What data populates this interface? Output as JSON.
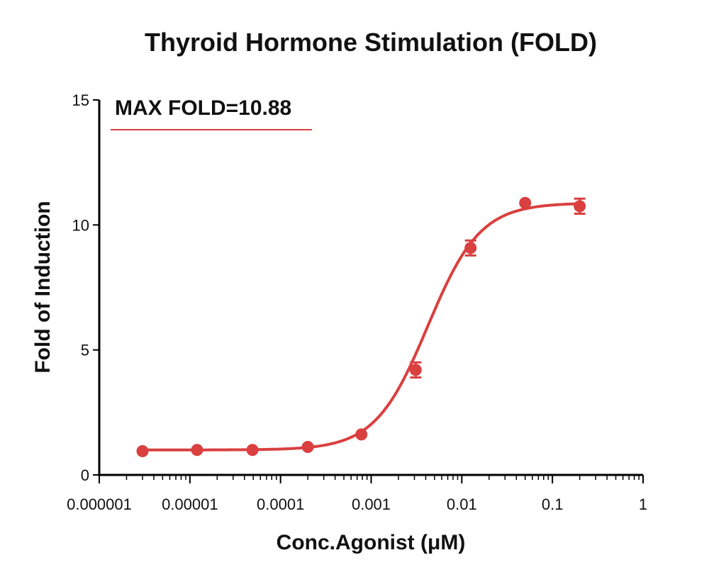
{
  "chart_data": {
    "type": "scatter",
    "title": "Thyroid Hormone Stimulation (FOLD)",
    "xlabel": "Conc.Agonist (μM)",
    "ylabel": "Fold of Induction",
    "x_scale": "log",
    "xlim": [
      1e-06,
      1
    ],
    "ylim": [
      0,
      15
    ],
    "x_ticks": [
      {
        "value": 1e-06,
        "label": "0.000001"
      },
      {
        "value": 1e-05,
        "label": "0.00001"
      },
      {
        "value": 0.0001,
        "label": "0.0001"
      },
      {
        "value": 0.001,
        "label": "0.001"
      },
      {
        "value": 0.01,
        "label": "0.01"
      },
      {
        "value": 0.1,
        "label": "0.1"
      },
      {
        "value": 1,
        "label": "1"
      }
    ],
    "y_ticks": [
      {
        "value": 0,
        "label": "0"
      },
      {
        "value": 5,
        "label": "5"
      },
      {
        "value": 10,
        "label": "10"
      },
      {
        "value": 15,
        "label": "15"
      }
    ],
    "grid": false,
    "annotation": {
      "text": "MAX FOLD=10.88"
    },
    "color": "#d9403f",
    "series": [
      {
        "points": [
          {
            "x": 3e-06,
            "y": 0.95,
            "err": 0.05
          },
          {
            "x": 1.2e-05,
            "y": 1.0,
            "err": 0.05
          },
          {
            "x": 4.9e-05,
            "y": 1.0,
            "err": 0.05
          },
          {
            "x": 0.0002,
            "y": 1.12,
            "err": 0.08
          },
          {
            "x": 0.00078,
            "y": 1.62,
            "err": 0.08
          },
          {
            "x": 0.0031,
            "y": 4.2,
            "err": 0.3
          },
          {
            "x": 0.0125,
            "y": 9.08,
            "err": 0.3
          },
          {
            "x": 0.05,
            "y": 10.88,
            "err": 0.1
          },
          {
            "x": 0.2,
            "y": 10.75,
            "err": 0.3
          }
        ],
        "fit": {
          "model": "4PL",
          "bottom": 1.0,
          "top": 10.88,
          "ec50": 0.0042,
          "hill": 1.5
        }
      }
    ]
  }
}
